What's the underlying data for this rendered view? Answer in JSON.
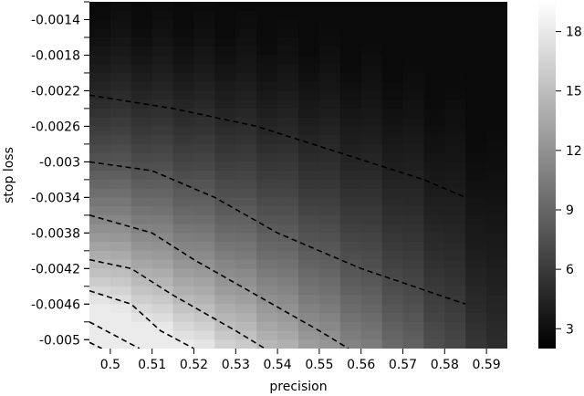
{
  "chart_data": {
    "type": "heatmap",
    "title": "",
    "xlabel": "precision",
    "ylabel": "stop loss",
    "x_ticks": [
      "0.5",
      "0.51",
      "0.52",
      "0.53",
      "0.54",
      "0.55",
      "0.56",
      "0.57",
      "0.58",
      "0.59"
    ],
    "y_ticks": [
      "-0.0014",
      "-0.0018",
      "-0.0022",
      "-0.0026",
      "-0.003",
      "-0.0034",
      "-0.0038",
      "-0.0042",
      "-0.0046",
      "-0.005"
    ],
    "x_range": [
      0.495,
      0.595
    ],
    "y_range": [
      -0.0012,
      -0.0051
    ],
    "colorbar": {
      "ticks": [
        "3",
        "6",
        "9",
        "12",
        "15",
        "18"
      ],
      "range": [
        2,
        19.5
      ],
      "colormap": "gray"
    },
    "contour_lines": [
      {
        "points": [
          [
            0.495,
            -0.00225
          ],
          [
            0.515,
            -0.0024
          ],
          [
            0.535,
            -0.0026
          ],
          [
            0.555,
            -0.0029
          ],
          [
            0.575,
            -0.0032
          ],
          [
            0.585,
            -0.0034
          ]
        ]
      },
      {
        "points": [
          [
            0.495,
            -0.003
          ],
          [
            0.51,
            -0.0031
          ],
          [
            0.525,
            -0.0034
          ],
          [
            0.54,
            -0.0038
          ],
          [
            0.56,
            -0.0042
          ],
          [
            0.585,
            -0.0046
          ]
        ]
      },
      {
        "points": [
          [
            0.495,
            -0.0036
          ],
          [
            0.51,
            -0.0038
          ],
          [
            0.52,
            -0.0041
          ],
          [
            0.535,
            -0.0045
          ],
          [
            0.55,
            -0.0049
          ],
          [
            0.557,
            -0.0051
          ]
        ]
      },
      {
        "points": [
          [
            0.495,
            -0.0041
          ],
          [
            0.505,
            -0.0042
          ],
          [
            0.515,
            -0.0045
          ],
          [
            0.53,
            -0.0049
          ],
          [
            0.537,
            -0.0051
          ]
        ]
      },
      {
        "points": [
          [
            0.495,
            -0.00445
          ],
          [
            0.505,
            -0.0046
          ],
          [
            0.512,
            -0.0049
          ],
          [
            0.52,
            -0.0051
          ]
        ]
      },
      {
        "points": [
          [
            0.495,
            -0.0048
          ],
          [
            0.503,
            -0.005
          ],
          [
            0.507,
            -0.0051
          ]
        ]
      },
      {
        "points": [
          [
            0.495,
            -0.00503
          ],
          [
            0.498,
            -0.0051
          ]
        ]
      }
    ],
    "grid": false,
    "legend": "none"
  }
}
